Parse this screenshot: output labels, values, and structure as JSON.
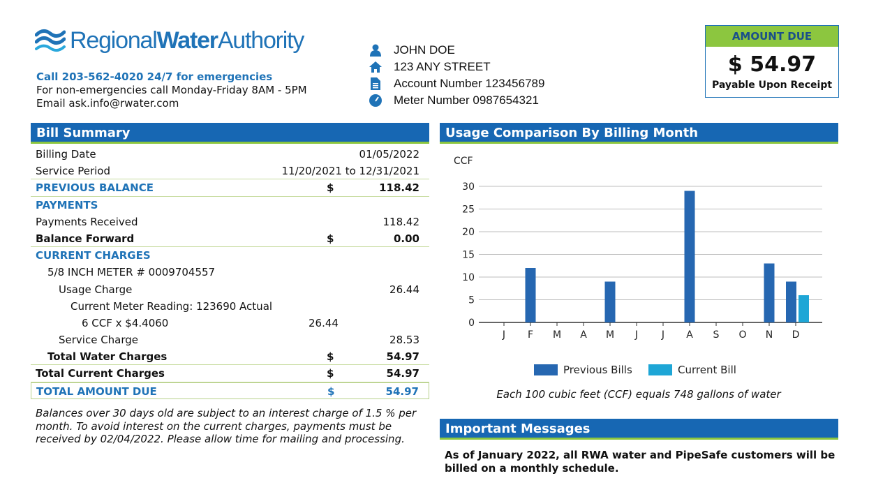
{
  "header": {
    "logo_regional": "Regional",
    "logo_water": "Water",
    "logo_authority": "Authority",
    "emergency": "Call 203-562-4020 24/7 for emergencies",
    "non_emergency": "For non-emergencies call Monday-Friday 8AM - 5PM",
    "email": "Email ask.info@rwater.com"
  },
  "account": {
    "name": "JOHN DOE",
    "street": "123 ANY STREET",
    "account_number": "Account Number 123456789",
    "meter_number": "Meter Number 0987654321",
    "icons": [
      "person-icon",
      "home-icon",
      "document-icon",
      "gauge-icon"
    ]
  },
  "amount_due": {
    "heading": "AMOUNT DUE",
    "amount": "$ 54.97",
    "note": "Payable Upon Receipt"
  },
  "bill_summary": {
    "title": "Bill Summary",
    "billing_date_label": "Billing Date",
    "billing_date": "01/05/2022",
    "service_period_label": "Service Period",
    "service_period": "11/20/2021 to 12/31/2021",
    "previous_balance_label": "PREVIOUS BALANCE",
    "previous_balance": "118.42",
    "payments_label": "PAYMENTS",
    "payments_received_label": "Payments Received",
    "payments_received": "118.42",
    "balance_forward_label": "Balance Forward",
    "balance_forward": "0.00",
    "current_charges_label": "CURRENT CHARGES",
    "meter_label": "5/8 INCH METER # 0009704557",
    "usage_charge_label": "Usage Charge",
    "usage_charge": "26.44",
    "meter_reading_label": "Current Meter Reading: 123690  Actual",
    "rate_label": "6 CCF x $4.4060",
    "rate_amount": "26.44",
    "service_charge_label": "Service Charge",
    "service_charge": "28.53",
    "total_water_label": "Total Water Charges",
    "total_water": "54.97",
    "total_current_label": "Total Current Charges",
    "total_current": "54.97",
    "total_due_label": "TOTAL AMOUNT DUE",
    "total_due": "54.97",
    "currency": "$"
  },
  "interest_note": "Balances over 30 days old are subject to an interest charge of 1.5 % per month. To avoid interest on the current charges, payments must be received by 02/04/2022. Please allow time for mailing and processing.",
  "usage": {
    "title": "Usage Comparison By Billing Month",
    "footnote": "Each 100 cubic feet (CCF) equals 748 gallons of water"
  },
  "chart_data": {
    "type": "bar",
    "ylabel": "CCF",
    "ylim": [
      0,
      30
    ],
    "yticks": [
      0,
      5,
      10,
      15,
      20,
      25,
      30
    ],
    "grid": true,
    "legend": "bottom",
    "categories": [
      "J",
      "F",
      "M",
      "A",
      "M",
      "J",
      "J",
      "A",
      "S",
      "O",
      "N",
      "D"
    ],
    "series": [
      {
        "name": "Previous Bills",
        "color": "#2667b1",
        "values": [
          null,
          12,
          null,
          null,
          9,
          null,
          null,
          29,
          null,
          null,
          13,
          9
        ]
      },
      {
        "name": "Current Bill",
        "color": "#1ea6d6",
        "values": [
          null,
          null,
          null,
          null,
          null,
          null,
          null,
          null,
          null,
          null,
          null,
          6
        ]
      }
    ]
  },
  "messages": {
    "title": "Important Messages",
    "text": "As of January 2022, all RWA water and PipeSafe customers will be billed on a monthly schedule."
  }
}
